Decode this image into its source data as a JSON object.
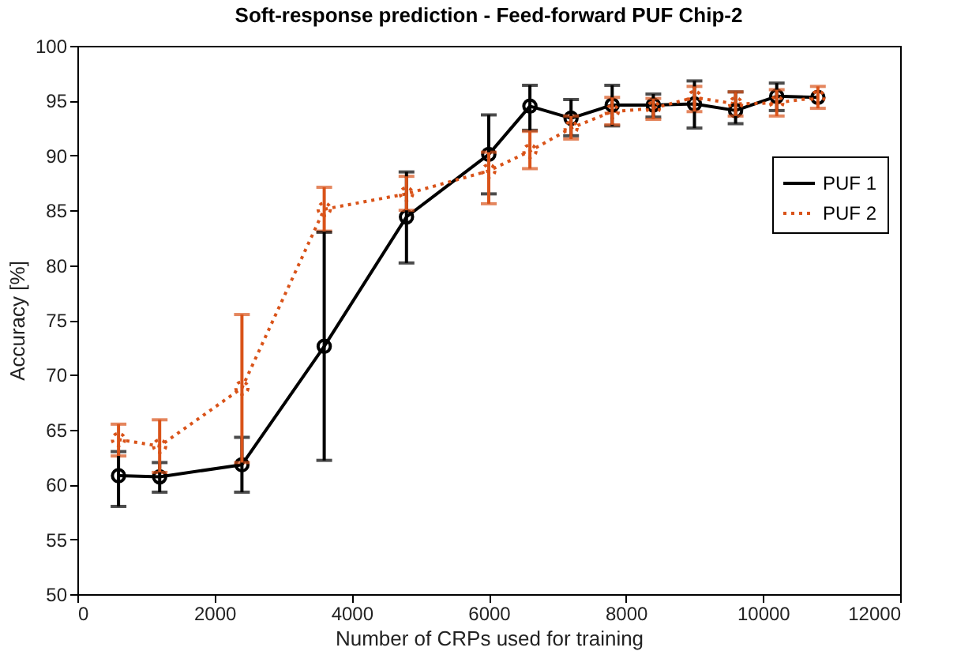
{
  "chart_data": {
    "type": "line",
    "title": "Soft-response prediction - Feed-forward PUF Chip-2",
    "xlabel": "Number of CRPs used for training",
    "ylabel": "Accuracy [%]",
    "x": [
      600,
      1200,
      2400,
      3600,
      4800,
      6000,
      6600,
      7200,
      7800,
      8400,
      9000,
      9600,
      10200,
      10800
    ],
    "series": [
      {
        "name": "PUF 1",
        "color": "#000000",
        "line_style": "solid",
        "values": [
          60.8,
          60.7,
          61.8,
          72.6,
          84.4,
          90.1,
          94.5,
          93.4,
          94.6,
          94.6,
          94.7,
          94.1,
          95.4,
          95.3
        ],
        "errors": [
          [
            58,
            63
          ],
          [
            59.3,
            62
          ],
          [
            59.3,
            64.3
          ],
          [
            62.2,
            83
          ],
          [
            80.2,
            88.5
          ],
          [
            86.5,
            93.7
          ],
          [
            92.3,
            96.4
          ],
          [
            91.8,
            95.1
          ],
          [
            92.7,
            96.4
          ],
          [
            93.5,
            95.6
          ],
          [
            92.5,
            96.8
          ],
          [
            92.9,
            95.8
          ],
          [
            94.1,
            96.6
          ],
          null
        ]
      },
      {
        "name": "PUF 2",
        "color": "#d95319",
        "line_style": "dotted",
        "values": [
          64.1,
          63.5,
          68.8,
          85.1,
          86.5,
          88.6,
          90.4,
          92.5,
          94,
          94.3,
          95.3,
          94.7,
          94.8,
          95.3
        ],
        "errors": [
          [
            62.6,
            65.5
          ],
          [
            61.1,
            65.9
          ],
          [
            62,
            75.5
          ],
          [
            83.1,
            87.1
          ],
          [
            85,
            88.1
          ],
          [
            85.6,
            90.3
          ],
          [
            88.8,
            92.2
          ],
          [
            91.5,
            93.6
          ],
          [
            92.8,
            95.3
          ],
          [
            93.3,
            95.2
          ],
          [
            94,
            96.3
          ],
          [
            93.6,
            95.8
          ],
          [
            93.6,
            96
          ],
          [
            94.3,
            96.3
          ]
        ]
      }
    ],
    "marker": "circle",
    "xlim": [
      0,
      12000
    ],
    "xticks": [
      0,
      2000,
      4000,
      6000,
      8000,
      10000,
      12000
    ],
    "ylim": [
      50,
      100
    ],
    "yticks": [
      50,
      55,
      60,
      65,
      70,
      75,
      80,
      85,
      90,
      95,
      100
    ],
    "grid": false,
    "legend": "top right"
  }
}
